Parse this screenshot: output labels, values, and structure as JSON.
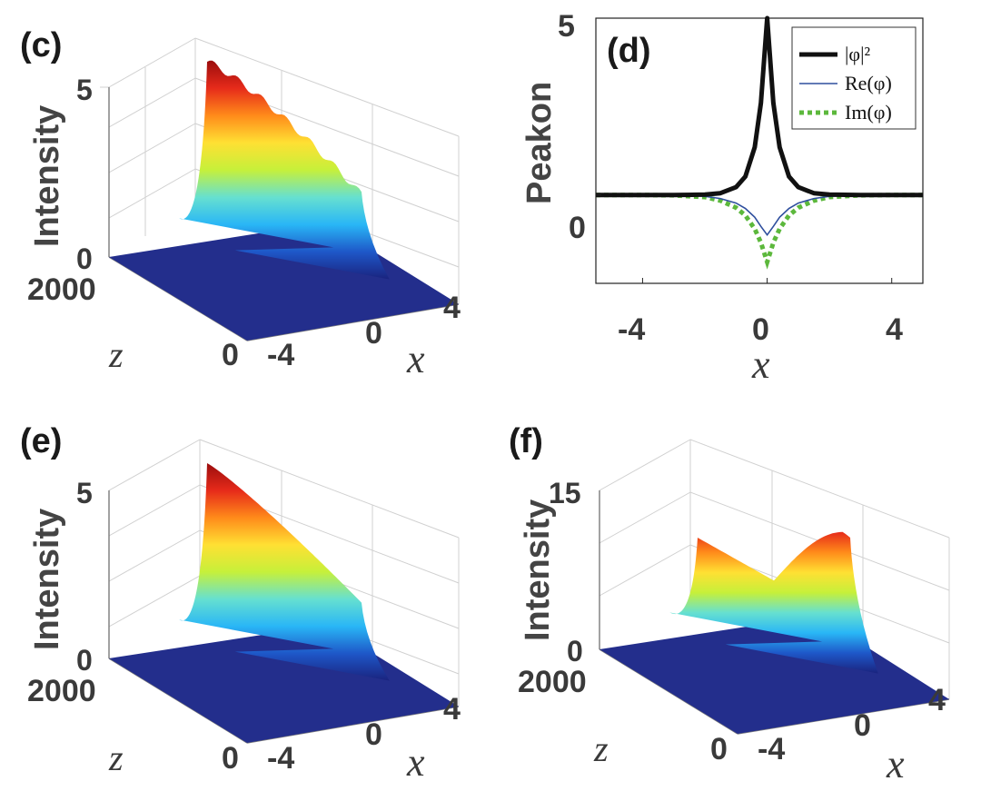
{
  "chart_data": [
    {
      "panel": "(c)",
      "type": "surface",
      "ylabel": "Intensity",
      "zlim": [
        0,
        5
      ],
      "z_ticks": [
        "0",
        "5"
      ],
      "depth_label": "z",
      "depth_ticks": [
        "0",
        "2000"
      ],
      "depth_range": [
        0,
        2000
      ],
      "xlabel": "x",
      "x_ticks": [
        "-4",
        "0",
        "4"
      ],
      "x_range": [
        -4,
        4
      ],
      "peak_start": 5.0,
      "peak_end": 2.0,
      "colormap": [
        "#1a237e",
        "#1e57c8",
        "#29b6f6",
        "#66e0d0",
        "#c6f03a",
        "#ffe033",
        "#ff8a1a",
        "#e62a1a",
        "#9b0d0d"
      ]
    },
    {
      "panel": "(d)",
      "type": "line",
      "ylabel": "Peakon",
      "xlabel": "x",
      "xlim": [
        -5.5,
        5
      ],
      "ylim": [
        -2.5,
        5
      ],
      "x_ticks": [
        "-4",
        "0",
        "4"
      ],
      "y_ticks": [
        "0",
        "5"
      ],
      "legend_position": "top-right",
      "series": [
        {
          "name": "|φ|²",
          "color": "#111111",
          "style": "solid-thick",
          "x": [
            -5.5,
            -4,
            -3,
            -2,
            -1.5,
            -1,
            -0.7,
            -0.4,
            -0.2,
            0,
            0.2,
            0.4,
            0.7,
            1,
            1.5,
            2,
            3,
            4,
            5
          ],
          "y": [
            0,
            0,
            0,
            0.01,
            0.05,
            0.22,
            0.52,
            1.35,
            2.6,
            5,
            2.6,
            1.35,
            0.52,
            0.22,
            0.05,
            0.01,
            0,
            0,
            0
          ]
        },
        {
          "name": "Re(φ)",
          "color": "#2f4f9e",
          "style": "solid-thin",
          "x": [
            -5.5,
            -4,
            -3,
            -2,
            -1.5,
            -1,
            -0.7,
            -0.4,
            -0.2,
            0,
            0.2,
            0.4,
            0.7,
            1,
            1.5,
            2,
            3,
            4,
            5
          ],
          "y": [
            0,
            0,
            0,
            -0.04,
            -0.1,
            -0.23,
            -0.38,
            -0.63,
            -0.89,
            -1.13,
            -0.89,
            -0.63,
            -0.38,
            -0.23,
            -0.1,
            -0.04,
            0,
            0,
            0
          ]
        },
        {
          "name": "Im(φ)",
          "color": "#5cb83c",
          "style": "dotted-thick",
          "x": [
            -5.5,
            -4,
            -3,
            -2,
            -1.5,
            -1,
            -0.7,
            -0.4,
            -0.2,
            0,
            0.2,
            0.4,
            0.7,
            1,
            1.5,
            2,
            3,
            4,
            5
          ],
          "y": [
            0,
            0,
            -0.01,
            -0.06,
            -0.16,
            -0.36,
            -0.58,
            -0.96,
            -1.35,
            -1.9,
            -1.35,
            -0.96,
            -0.58,
            -0.36,
            -0.16,
            -0.06,
            -0.01,
            0,
            0
          ]
        }
      ]
    },
    {
      "panel": "(e)",
      "type": "surface",
      "ylabel": "Intensity",
      "zlim": [
        0,
        5
      ],
      "z_ticks": [
        "0",
        "5"
      ],
      "depth_label": "z",
      "depth_ticks": [
        "0",
        "2000"
      ],
      "depth_range": [
        0,
        2000
      ],
      "xlabel": "x",
      "x_ticks": [
        "-4",
        "0",
        "4"
      ],
      "x_range": [
        -4,
        4
      ],
      "peak_start": 5.0,
      "peak_end": 1.8,
      "colormap": [
        "#1a237e",
        "#1e57c8",
        "#29b6f6",
        "#66e0d0",
        "#c6f03a",
        "#ffe033",
        "#ff8a1a",
        "#e62a1a",
        "#9b0d0d"
      ]
    },
    {
      "panel": "(f)",
      "type": "surface",
      "ylabel": "Intensity",
      "zlim": [
        0,
        15
      ],
      "z_ticks": [
        "0",
        "15"
      ],
      "depth_label": "z",
      "depth_ticks": [
        "0",
        "2000"
      ],
      "depth_range": [
        0,
        2000
      ],
      "xlabel": "x",
      "x_ticks": [
        "-4",
        "0",
        "4"
      ],
      "x_range": [
        -4,
        4
      ],
      "peak_start": 8.0,
      "peak_mid": 5.5,
      "peak_end": 8.5,
      "colormap": [
        "#1a237e",
        "#1e57c8",
        "#29b6f6",
        "#66e0d0",
        "#c6f03a",
        "#ffe033",
        "#ff8a1a",
        "#e62a1a",
        "#9b0d0d"
      ]
    }
  ]
}
